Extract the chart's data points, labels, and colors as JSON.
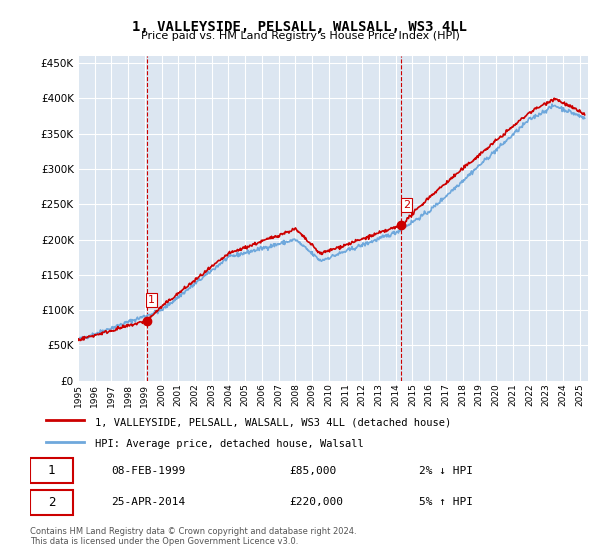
{
  "title": "1, VALLEYSIDE, PELSALL, WALSALL, WS3 4LL",
  "subtitle": "Price paid vs. HM Land Registry's House Price Index (HPI)",
  "legend_line1": "1, VALLEYSIDE, PELSALL, WALSALL, WS3 4LL (detached house)",
  "legend_line2": "HPI: Average price, detached house, Walsall",
  "annotation1_label": "1",
  "annotation1_date": "08-FEB-1999",
  "annotation1_price": "£85,000",
  "annotation1_hpi": "2% ↓ HPI",
  "annotation2_label": "2",
  "annotation2_date": "25-APR-2014",
  "annotation2_price": "£220,000",
  "annotation2_hpi": "5% ↑ HPI",
  "footer": "Contains HM Land Registry data © Crown copyright and database right 2024.\nThis data is licensed under the Open Government Licence v3.0.",
  "ylim": [
    0,
    460000
  ],
  "xlim_start": 1995.0,
  "xlim_end": 2025.5,
  "sale1_x": 1999.1,
  "sale1_y": 85000,
  "sale2_x": 2014.32,
  "sale2_y": 220000,
  "hpi_line_color": "#6fa8dc",
  "price_line_color": "#cc0000",
  "vline_color": "#cc0000",
  "background_color": "#ffffff",
  "plot_bg_color": "#dce6f1"
}
